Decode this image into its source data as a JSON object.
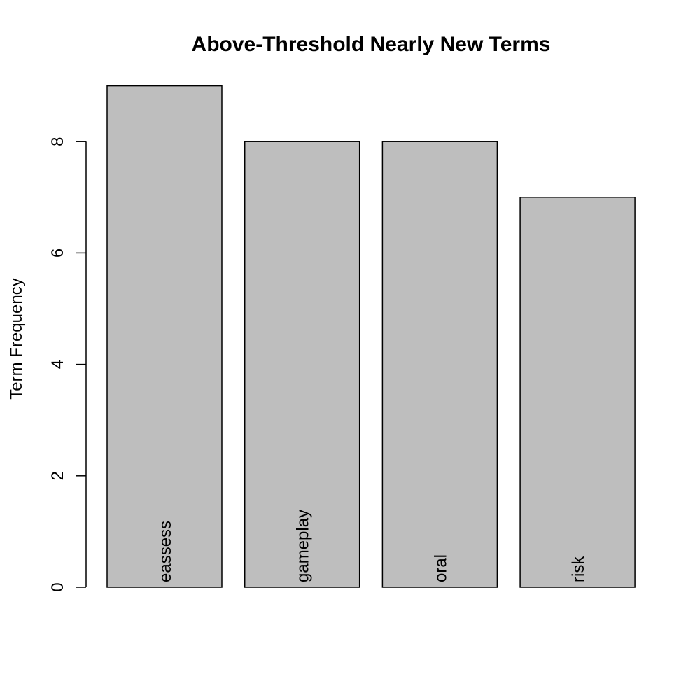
{
  "chart_data": {
    "type": "bar",
    "title": "Above-Threshold Nearly New Terms",
    "xlabel": "",
    "ylabel": "Term Frequency",
    "categories": [
      "eassess",
      "gameplay",
      "oral",
      "risk"
    ],
    "values": [
      9,
      8,
      8,
      7
    ],
    "y_ticks": [
      0,
      2,
      4,
      6,
      8
    ],
    "ylim": [
      0,
      9
    ],
    "grid": false,
    "bar_color": "#bebebe",
    "bar_border_color": "#000000"
  }
}
